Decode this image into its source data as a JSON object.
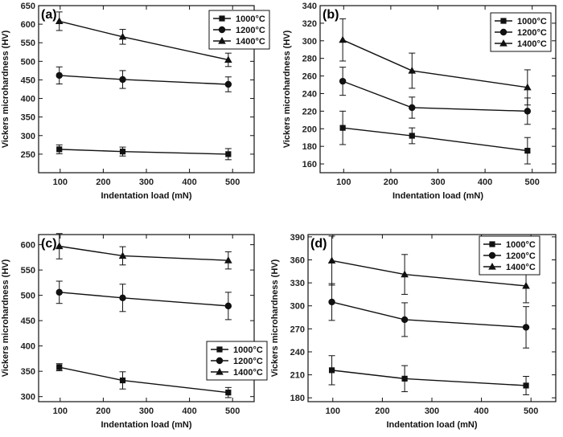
{
  "chart_data": [
    {
      "type": "line",
      "panel_label": "(a)",
      "xlabel": "Indentation load (mN)",
      "ylabel": "Vickers microhardness (HV)",
      "xlim": [
        50,
        550
      ],
      "ylim": [
        200,
        650
      ],
      "xticks": [
        100,
        200,
        300,
        400,
        500
      ],
      "yticks": [
        250,
        300,
        350,
        400,
        450,
        500,
        550,
        600,
        650
      ],
      "legend_position": "top-right",
      "x": [
        98,
        245,
        490
      ],
      "series": [
        {
          "name": "1000°C",
          "marker": "square",
          "values": [
            263,
            257,
            250
          ],
          "errors": [
            12,
            12,
            15
          ]
        },
        {
          "name": "1200°C",
          "marker": "circle",
          "values": [
            462,
            451,
            438
          ],
          "errors": [
            23,
            24,
            20
          ]
        },
        {
          "name": "1400°C",
          "marker": "triangle",
          "values": [
            608,
            566,
            504
          ],
          "errors": [
            25,
            20,
            18
          ]
        }
      ]
    },
    {
      "type": "line",
      "panel_label": "(b)",
      "xlabel": "Indentation load (mN)",
      "ylabel": "Vickers microhardness (HV)",
      "xlim": [
        50,
        550
      ],
      "ylim": [
        150,
        340
      ],
      "xticks": [
        100,
        200,
        300,
        400,
        500
      ],
      "yticks": [
        160,
        180,
        200,
        220,
        240,
        260,
        280,
        300,
        320,
        340
      ],
      "legend_position": "top-right",
      "x": [
        98,
        245,
        490
      ],
      "series": [
        {
          "name": "1000°C",
          "marker": "square",
          "values": [
            201,
            192,
            175
          ],
          "errors": [
            19,
            9,
            15
          ]
        },
        {
          "name": "1200°C",
          "marker": "circle",
          "values": [
            254,
            224,
            220
          ],
          "errors": [
            16,
            12,
            15
          ]
        },
        {
          "name": "1400°C",
          "marker": "triangle",
          "values": [
            301,
            266,
            247
          ],
          "errors": [
            24,
            20,
            20
          ]
        }
      ]
    },
    {
      "type": "line",
      "panel_label": "(c)",
      "xlabel": "Indentation load (mN)",
      "ylabel": "Vickers microhardness (HV)",
      "xlim": [
        50,
        550
      ],
      "ylim": [
        290,
        620
      ],
      "xticks": [
        100,
        200,
        300,
        400,
        500
      ],
      "yticks": [
        300,
        350,
        400,
        450,
        500,
        550,
        600
      ],
      "legend_position": "bottom-right",
      "x": [
        98,
        245,
        490
      ],
      "series": [
        {
          "name": "1000°C",
          "marker": "square",
          "values": [
            358,
            332,
            308
          ],
          "errors": [
            7,
            17,
            10
          ]
        },
        {
          "name": "1200°C",
          "marker": "circle",
          "values": [
            506,
            495,
            479
          ],
          "errors": [
            22,
            27,
            27
          ]
        },
        {
          "name": "1400°C",
          "marker": "triangle",
          "values": [
            597,
            578,
            569
          ],
          "errors": [
            25,
            18,
            17
          ]
        }
      ]
    },
    {
      "type": "line",
      "panel_label": "(d)",
      "xlabel": "Indentation load (mN)",
      "ylabel": "Vickers microhardness (HV)",
      "xlim": [
        50,
        550
      ],
      "ylim": [
        175,
        393
      ],
      "xticks": [
        100,
        200,
        300,
        400,
        500
      ],
      "yticks": [
        180,
        210,
        240,
        270,
        300,
        330,
        360,
        390
      ],
      "legend_position": "top-left",
      "x": [
        98,
        245,
        490
      ],
      "series": [
        {
          "name": "1000°C",
          "marker": "square",
          "values": [
            216,
            205,
            196
          ],
          "errors": [
            19,
            17,
            12
          ]
        },
        {
          "name": "1200°C",
          "marker": "circle",
          "values": [
            305,
            282,
            272
          ],
          "errors": [
            24,
            22,
            27
          ]
        },
        {
          "name": "1400°C",
          "marker": "triangle",
          "values": [
            359,
            341,
            326
          ],
          "errors": [
            32,
            26,
            22
          ]
        }
      ]
    }
  ]
}
